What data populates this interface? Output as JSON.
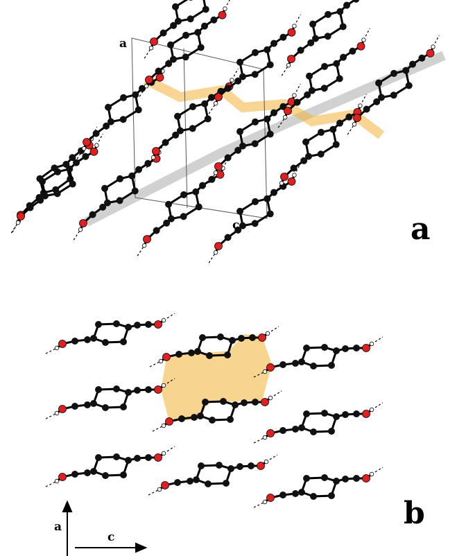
{
  "panel_a": {
    "label": "a",
    "cell_axes": [
      "a",
      "c"
    ]
  },
  "panel_b": {
    "label": "b",
    "axes": [
      "a",
      "c"
    ]
  }
}
